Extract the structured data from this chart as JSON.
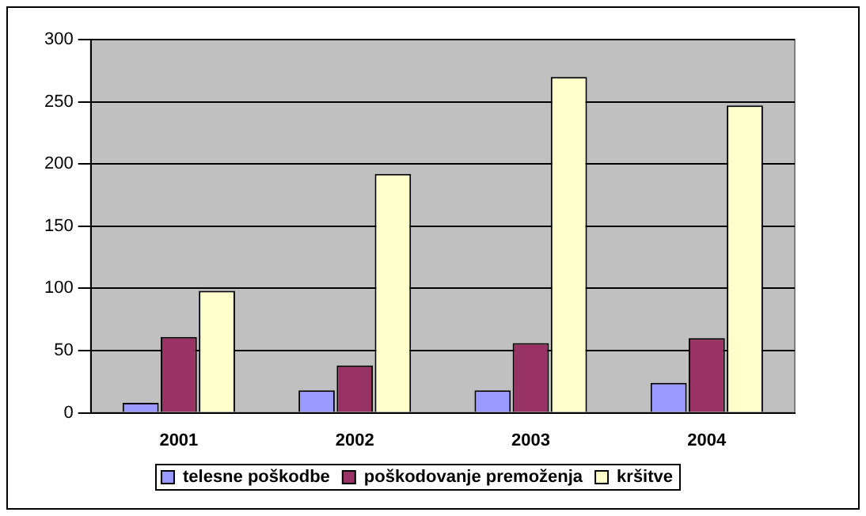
{
  "chart_data": {
    "type": "bar",
    "categories": [
      "2001",
      "2002",
      "2003",
      "2004"
    ],
    "series": [
      {
        "name": "telesne poškodbe",
        "color": "#9999ff",
        "values": [
          8,
          18,
          18,
          24
        ]
      },
      {
        "name": "poškodovanje premoženja",
        "color": "#993366",
        "values": [
          61,
          38,
          56,
          60
        ]
      },
      {
        "name": "kršitve",
        "color": "#ffffcc",
        "values": [
          98,
          192,
          270,
          247
        ]
      }
    ],
    "ylim": [
      0,
      300
    ],
    "yticks": [
      0,
      50,
      100,
      150,
      200,
      250,
      300
    ],
    "grid": "y",
    "legend": "bottom"
  }
}
